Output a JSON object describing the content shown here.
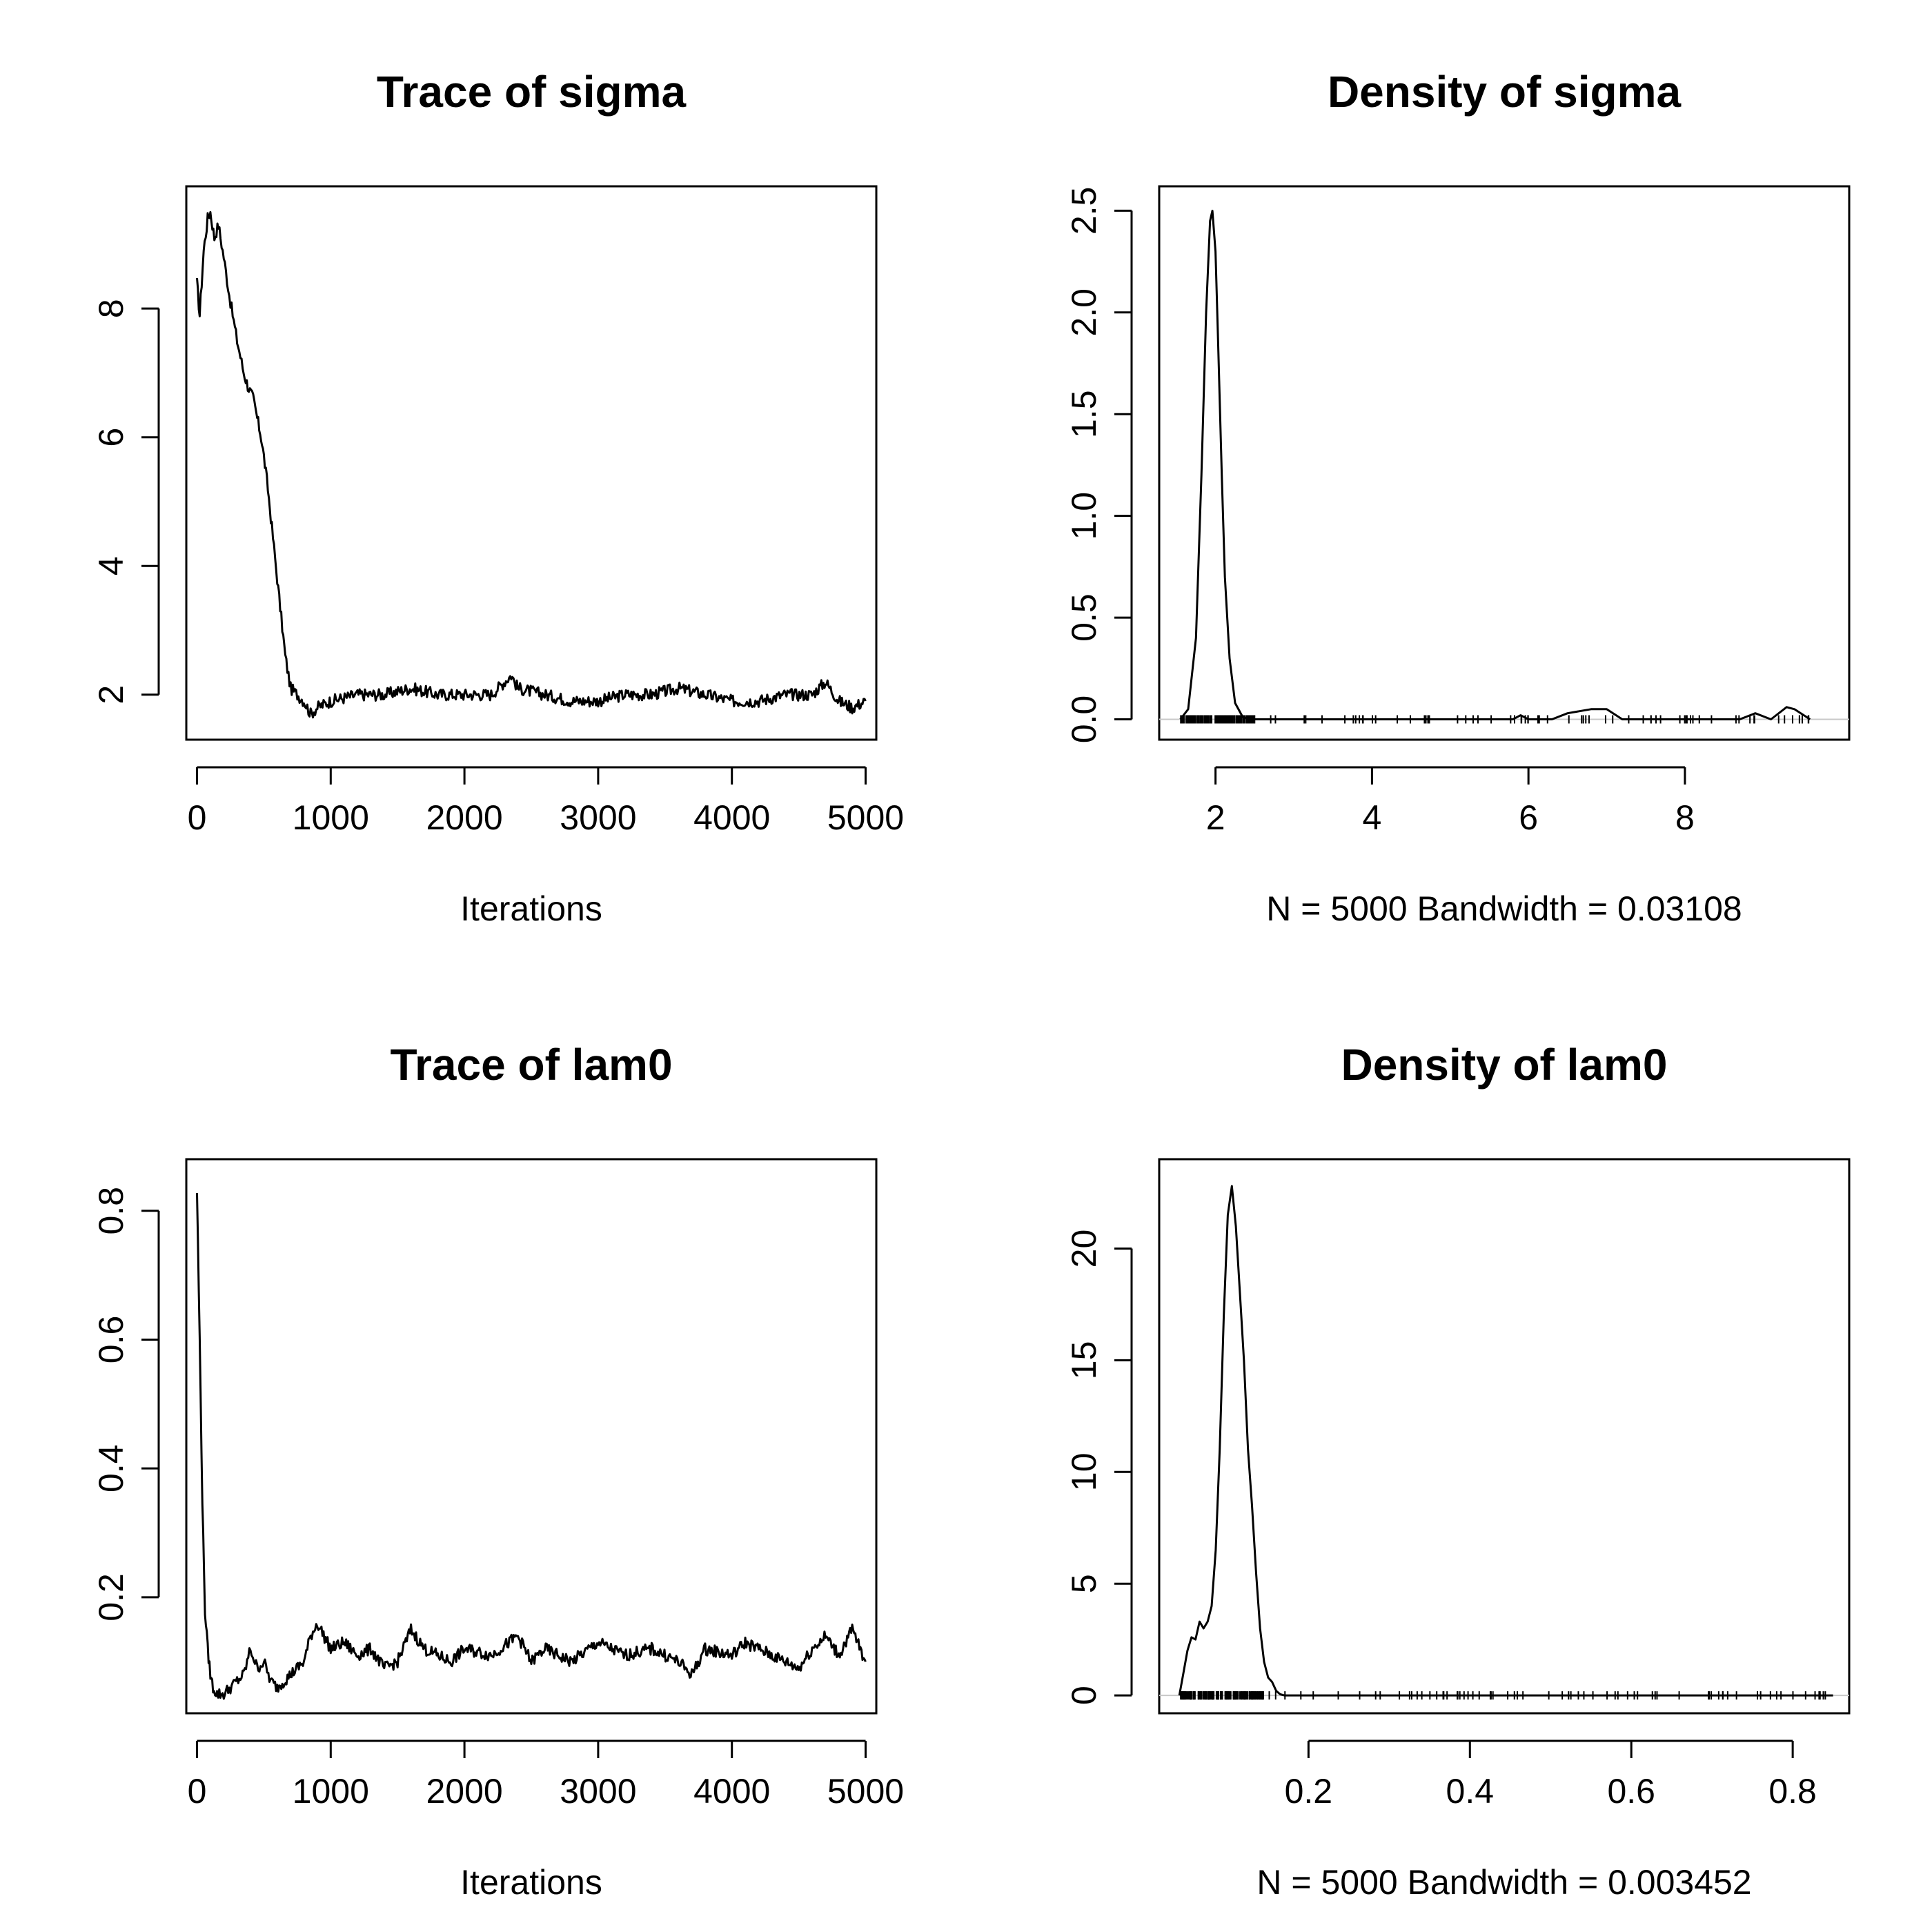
{
  "chart_data": [
    {
      "type": "line",
      "title": "Trace of sigma",
      "xlabel": "Iterations",
      "ylabel": "",
      "xlim": [
        -80,
        5080
      ],
      "ylim": [
        1.3,
        9.9
      ],
      "xticks": [
        0,
        1000,
        2000,
        3000,
        4000,
        5000
      ],
      "xtick_labels": [
        "0",
        "1000",
        "2000",
        "3000",
        "4000",
        "5000"
      ],
      "yticks": [
        2,
        4,
        6,
        8
      ],
      "ytick_labels": [
        "2",
        "4",
        "6",
        "8"
      ],
      "grid": false,
      "series": [
        {
          "x": [
            0,
            20,
            50,
            80,
            100,
            130,
            160,
            200,
            250,
            300,
            350,
            380,
            420,
            450,
            480,
            500,
            530,
            560,
            600,
            630,
            660,
            700,
            750,
            800,
            850,
            900,
            1000,
            1200,
            1400,
            1600,
            1800,
            2000,
            2200,
            2350,
            2400,
            2600,
            2800,
            3000,
            3200,
            3400,
            3600,
            3800,
            4000,
            4200,
            4400,
            4600,
            4700,
            4800,
            4900,
            5000
          ],
          "y": [
            8.4,
            7.9,
            8.9,
            9.4,
            9.5,
            9.1,
            9.3,
            8.8,
            8.1,
            7.5,
            7.0,
            6.8,
            6.6,
            6.3,
            6.0,
            5.7,
            5.2,
            4.6,
            3.8,
            3.2,
            2.6,
            2.1,
            2.0,
            1.9,
            1.7,
            1.8,
            1.9,
            2.0,
            2.0,
            2.1,
            2.0,
            2.0,
            2.0,
            2.3,
            2.1,
            2.0,
            1.9,
            1.9,
            2.0,
            2.0,
            2.1,
            2.0,
            1.9,
            1.9,
            2.0,
            2.0,
            2.2,
            1.9,
            1.8,
            1.9
          ]
        }
      ]
    },
    {
      "type": "line",
      "title": "Density of sigma",
      "xlabel": "N = 5000   Bandwidth = 0.03108",
      "ylabel": "",
      "xlim": [
        1.28,
        10.1
      ],
      "ylim": [
        -0.1,
        2.62
      ],
      "xticks": [
        2,
        4,
        6,
        8
      ],
      "xtick_labels": [
        "2",
        "4",
        "6",
        "8"
      ],
      "yticks": [
        0.0,
        0.5,
        1.0,
        1.5,
        2.0,
        2.5
      ],
      "ytick_labels": [
        "0.0",
        "0.5",
        "1.0",
        "1.5",
        "2.0",
        "2.5"
      ],
      "grid": false,
      "series": [
        {
          "x": [
            1.55,
            1.65,
            1.75,
            1.82,
            1.88,
            1.93,
            1.96,
            2.0,
            2.03,
            2.08,
            2.12,
            2.18,
            2.25,
            2.35,
            2.5,
            5.8,
            5.9,
            6.0,
            6.3,
            6.5,
            6.8,
            7.0,
            7.2,
            8.7,
            8.9,
            9.1,
            9.3,
            9.4,
            9.6
          ],
          "y": [
            0.0,
            0.05,
            0.4,
            1.2,
            2.0,
            2.45,
            2.5,
            2.3,
            1.9,
            1.2,
            0.7,
            0.3,
            0.08,
            0.01,
            0.0,
            0.0,
            0.02,
            0.0,
            0.0,
            0.03,
            0.05,
            0.05,
            0.0,
            0.0,
            0.03,
            0.0,
            0.06,
            0.05,
            0.0
          ]
        }
      ],
      "rug": true
    },
    {
      "type": "line",
      "title": "Trace of lam0",
      "xlabel": "Iterations",
      "ylabel": "",
      "xlim": [
        -80,
        5080
      ],
      "ylim": [
        0.02,
        0.88
      ],
      "xticks": [
        0,
        1000,
        2000,
        3000,
        4000,
        5000
      ],
      "xtick_labels": [
        "0",
        "1000",
        "2000",
        "3000",
        "4000",
        "5000"
      ],
      "yticks": [
        0.2,
        0.4,
        0.6,
        0.8
      ],
      "ytick_labels": [
        "0.2",
        "0.4",
        "0.6",
        "0.8"
      ],
      "grid": false,
      "series": [
        {
          "x": [
            0,
            20,
            40,
            60,
            80,
            100,
            120,
            150,
            200,
            250,
            300,
            350,
            400,
            450,
            500,
            550,
            600,
            700,
            800,
            850,
            900,
            1000,
            1100,
            1200,
            1300,
            1400,
            1500,
            1600,
            1700,
            1800,
            1900,
            2000,
            2200,
            2400,
            2500,
            2600,
            2800,
            3000,
            3200,
            3400,
            3600,
            3700,
            3800,
            4000,
            4100,
            4200,
            4400,
            4500,
            4600,
            4700,
            4800,
            4900,
            5000
          ],
          "y": [
            0.83,
            0.6,
            0.35,
            0.18,
            0.12,
            0.08,
            0.06,
            0.05,
            0.05,
            0.06,
            0.07,
            0.08,
            0.12,
            0.09,
            0.1,
            0.07,
            0.06,
            0.08,
            0.1,
            0.14,
            0.16,
            0.12,
            0.13,
            0.11,
            0.12,
            0.09,
            0.1,
            0.15,
            0.12,
            0.11,
            0.1,
            0.12,
            0.11,
            0.14,
            0.1,
            0.12,
            0.1,
            0.13,
            0.11,
            0.12,
            0.1,
            0.08,
            0.12,
            0.11,
            0.13,
            0.12,
            0.1,
            0.09,
            0.12,
            0.14,
            0.11,
            0.15,
            0.1
          ]
        }
      ]
    },
    {
      "type": "line",
      "title": "Density of lam0",
      "xlabel": "N = 5000   Bandwidth = 0.003452",
      "ylabel": "",
      "xlim": [
        0.015,
        0.87
      ],
      "ylim": [
        -0.8,
        24.0
      ],
      "xticks": [
        0.2,
        0.4,
        0.6,
        0.8
      ],
      "xtick_labels": [
        "0.2",
        "0.4",
        "0.6",
        "0.8"
      ],
      "yticks": [
        0,
        5,
        10,
        15,
        20
      ],
      "ytick_labels": [
        "0",
        "5",
        "10",
        "15",
        "20"
      ],
      "grid": false,
      "series": [
        {
          "x": [
            0.04,
            0.045,
            0.05,
            0.055,
            0.06,
            0.065,
            0.07,
            0.075,
            0.08,
            0.085,
            0.09,
            0.095,
            0.1,
            0.105,
            0.11,
            0.115,
            0.12,
            0.125,
            0.13,
            0.135,
            0.14,
            0.145,
            0.15,
            0.155,
            0.16,
            0.165,
            0.17,
            0.2,
            0.85
          ],
          "y": [
            0.0,
            1.0,
            2.0,
            2.6,
            2.5,
            3.3,
            3.0,
            3.3,
            4.0,
            6.5,
            11.0,
            17.0,
            21.5,
            22.8,
            21.0,
            18.0,
            15.0,
            11.0,
            8.5,
            5.5,
            3.0,
            1.5,
            0.8,
            0.6,
            0.2,
            0.05,
            0.0,
            0.0,
            0.0
          ]
        }
      ],
      "rug": true
    }
  ]
}
